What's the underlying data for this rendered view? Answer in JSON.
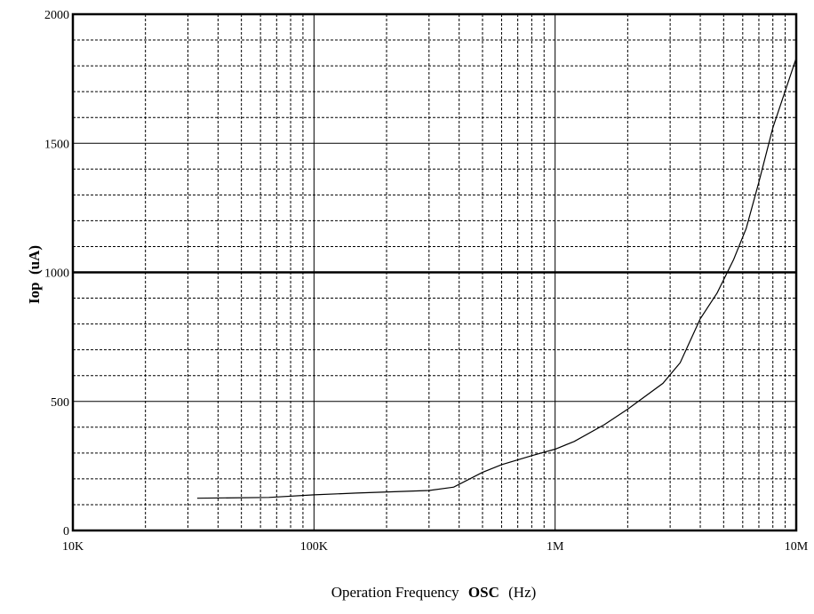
{
  "chart_data": {
    "type": "line",
    "x_scale": "log",
    "xlim": [
      10000,
      10000000
    ],
    "ylim": [
      0,
      2000
    ],
    "grid": true,
    "ylabel": "Iop  (uA)",
    "xlabel_prefix": "Operation Frequency",
    "xlabel_bold": "OSC",
    "xlabel_suffix": "(Hz)",
    "x_tick_labels": [
      {
        "value": 10000,
        "label": "10K"
      },
      {
        "value": 100000,
        "label": "100K"
      },
      {
        "value": 1000000,
        "label": "1M"
      },
      {
        "value": 10000000,
        "label": "10M"
      }
    ],
    "y_tick_labels": [
      {
        "value": 0,
        "label": "0"
      },
      {
        "value": 500,
        "label": "500"
      },
      {
        "value": 1000,
        "label": "1000"
      },
      {
        "value": 1500,
        "label": "1500"
      },
      {
        "value": 2000,
        "label": "2000"
      }
    ],
    "series": [
      {
        "x": [
          32768,
          65000,
          100000,
          150000,
          300000,
          380000,
          500000,
          600000,
          800000,
          1000000,
          1200000,
          1600000,
          2000000,
          2800000,
          3300000,
          4000000,
          4700000,
          5500000,
          6200000,
          7000000,
          8000000,
          10000000
        ],
        "y": [
          125,
          128,
          138,
          145,
          155,
          168,
          225,
          255,
          290,
          315,
          345,
          410,
          470,
          570,
          650,
          820,
          920,
          1050,
          1170,
          1350,
          1560,
          1830
        ]
      }
    ]
  }
}
